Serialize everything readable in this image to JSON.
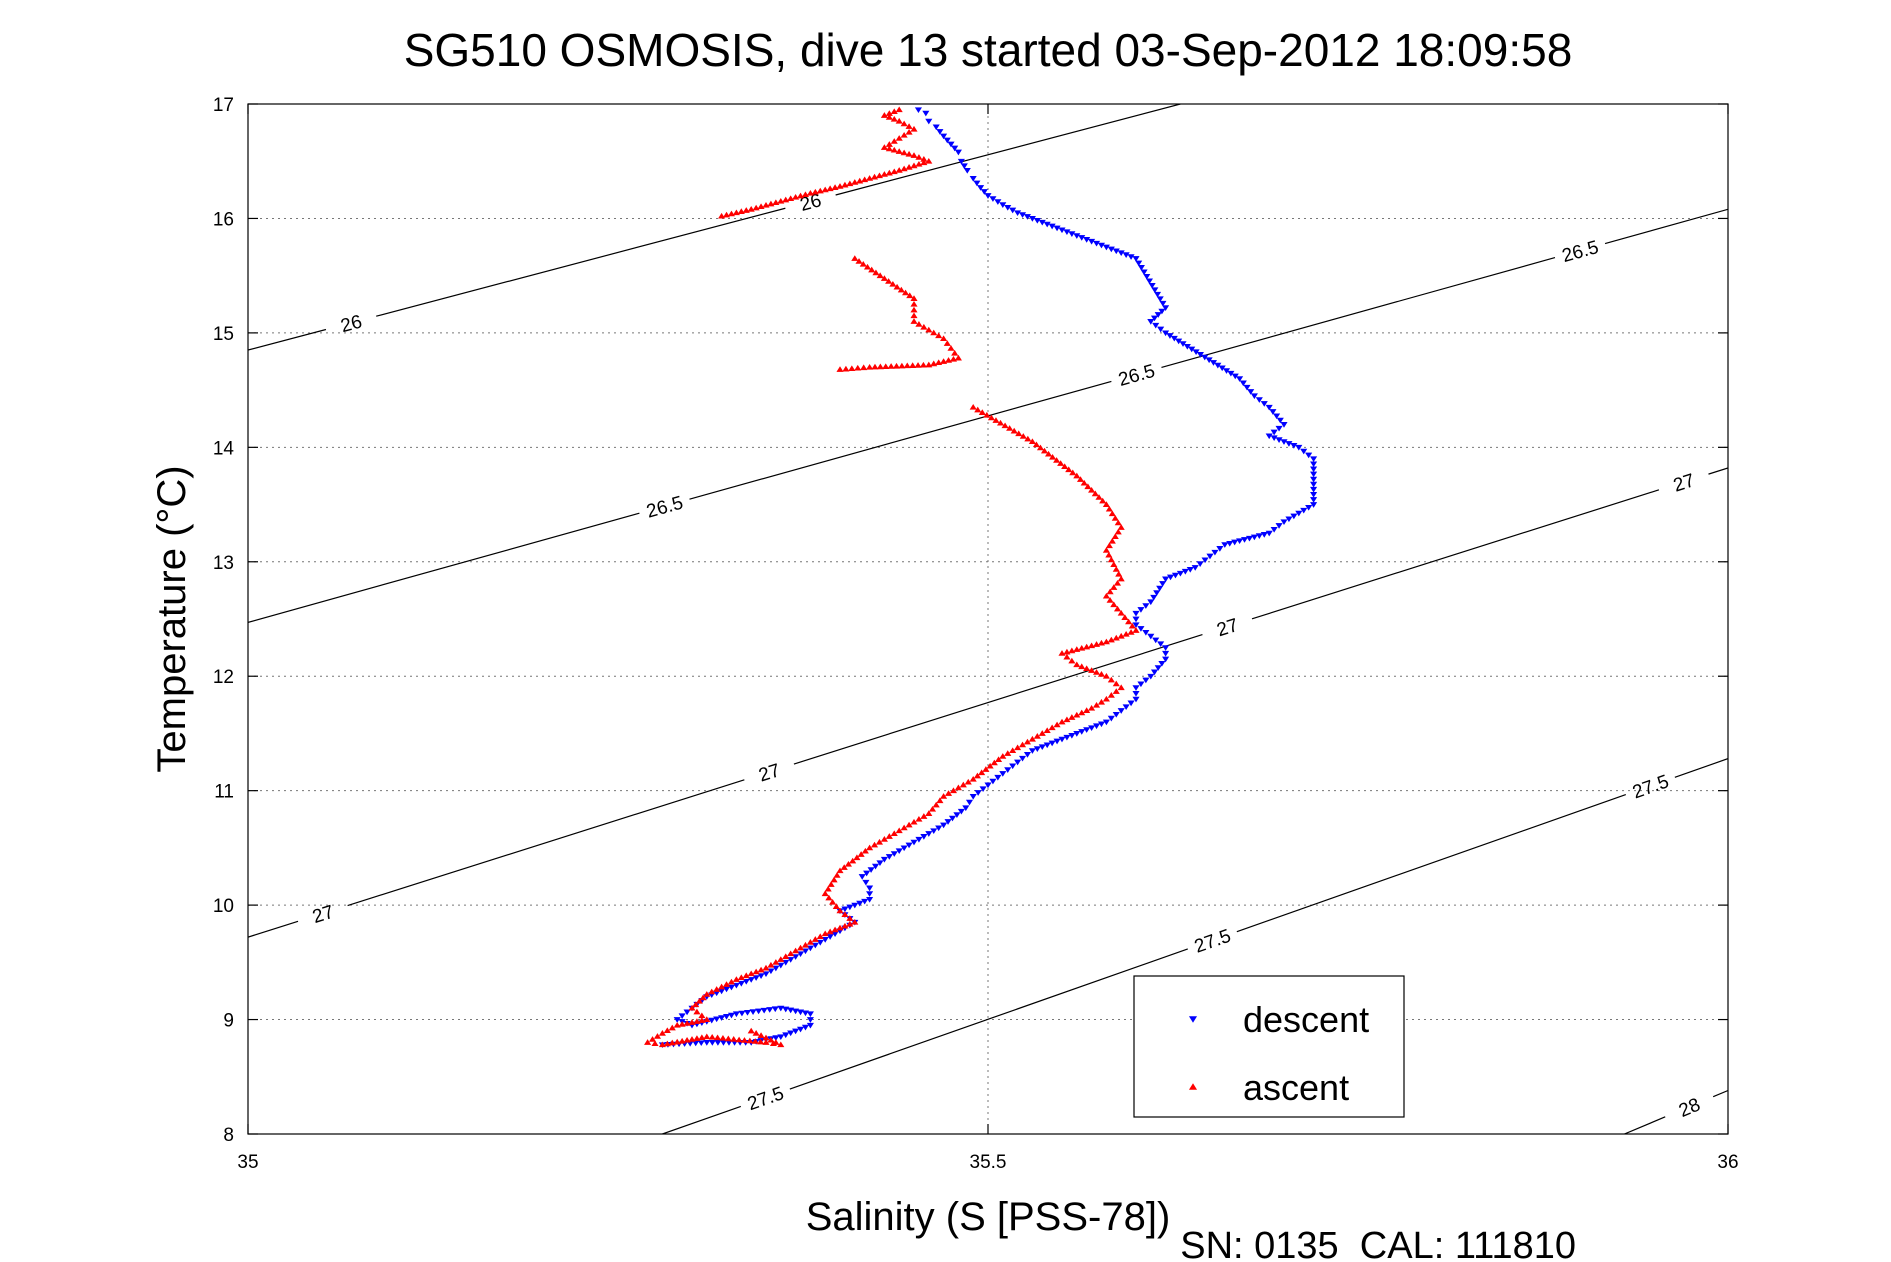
{
  "chart_data": {
    "type": "scatter",
    "title": "SG510 OSMOSIS, dive 13 started 03-Sep-2012 18:09:58",
    "xlabel": "Salinity (S [PSS-78])",
    "ylabel": "Temperature (°C)",
    "xlim": [
      35,
      36
    ],
    "ylim": [
      8,
      17
    ],
    "xticks": [
      35,
      35.5,
      36
    ],
    "xtick_labels": [
      "35",
      "35.5",
      "36"
    ],
    "yticks": [
      8,
      9,
      10,
      11,
      12,
      13,
      14,
      15,
      16,
      17
    ],
    "ytick_labels": [
      "8",
      "9",
      "10",
      "11",
      "12",
      "13",
      "14",
      "15",
      "16",
      "17"
    ],
    "grid": true,
    "legend_position": "bottom-right",
    "footer": "SN: 0135  CAL: 111810",
    "contours": [
      {
        "label": "26",
        "points": [
          [
            35,
            14.85
          ],
          [
            35.63,
            17.0
          ]
        ],
        "labels": [
          {
            "text": "26",
            "x": 35.07,
            "y": 15.07
          },
          {
            "text": "26",
            "x": 35.38,
            "y": 16.15
          }
        ]
      },
      {
        "label": "26.5",
        "points": [
          [
            35,
            12.47
          ],
          [
            36,
            16.08
          ]
        ],
        "labels": [
          {
            "text": "26.5",
            "x": 35.28,
            "y": 13.55
          },
          {
            "text": "26.5",
            "x": 35.6,
            "y": 14.65
          },
          {
            "text": "26.5",
            "x": 35.9,
            "y": 15.72
          }
        ]
      },
      {
        "label": "27",
        "points": [
          [
            35,
            9.72
          ],
          [
            36,
            13.82
          ]
        ],
        "labels": [
          {
            "text": "27",
            "x": 35.05,
            "y": 9.95
          },
          {
            "text": "27",
            "x": 35.35,
            "y": 11.25
          },
          {
            "text": "27",
            "x": 35.66,
            "y": 12.5
          },
          {
            "text": "27",
            "x": 35.97,
            "y": 13.7
          }
        ]
      },
      {
        "label": "27.5",
        "points": [
          [
            35.28,
            8.0
          ],
          [
            36,
            11.28
          ]
        ],
        "labels": [
          {
            "text": "27.5",
            "x": 35.35,
            "y": 8.3
          },
          {
            "text": "27.5",
            "x": 35.65,
            "y": 9.75
          },
          {
            "text": "27.5",
            "x": 35.95,
            "y": 10.95
          }
        ]
      },
      {
        "label": "28",
        "points": [
          [
            35.93,
            8.0
          ],
          [
            36,
            8.38
          ]
        ],
        "labels": [
          {
            "text": "28",
            "x": 35.975,
            "y": 8.2
          }
        ]
      }
    ],
    "series": [
      {
        "name": "descent",
        "color": "#0000ff",
        "marker": "triangle-down",
        "x": [
          35.453,
          35.458,
          35.46,
          35.465,
          35.47,
          35.475,
          35.48,
          35.482,
          35.486,
          35.49,
          35.495,
          35.5,
          35.51,
          35.52,
          35.54,
          35.56,
          35.6,
          35.62,
          35.61,
          35.62,
          35.67,
          35.68,
          35.69,
          35.7,
          35.69,
          35.71,
          35.72,
          35.72,
          35.7,
          35.69,
          35.66,
          35.65,
          35.64,
          35.62,
          35.61,
          35.6,
          35.6,
          35.61,
          35.62,
          35.62,
          35.61,
          35.6,
          35.6,
          35.59,
          35.58,
          35.57,
          35.55,
          35.53,
          35.52,
          35.51,
          35.5,
          35.49,
          35.485,
          35.47,
          35.45,
          35.43,
          35.415,
          35.42,
          35.42,
          35.4,
          35.41,
          35.39,
          35.37,
          35.35,
          35.33,
          35.31,
          35.3,
          35.29,
          35.3,
          35.33,
          35.36,
          35.38,
          35.38,
          35.36,
          35.34,
          35.31,
          35.28
        ],
        "y": [
          16.95,
          16.92,
          16.85,
          16.8,
          16.72,
          16.65,
          16.58,
          16.5,
          16.42,
          16.35,
          16.27,
          16.2,
          16.12,
          16.05,
          15.95,
          15.85,
          15.65,
          15.22,
          15.1,
          15.0,
          14.6,
          14.45,
          14.35,
          14.2,
          14.1,
          14.0,
          13.9,
          13.5,
          13.35,
          13.25,
          13.15,
          13.05,
          12.95,
          12.85,
          12.65,
          12.55,
          12.45,
          12.35,
          12.25,
          12.15,
          12.0,
          11.9,
          11.8,
          11.7,
          11.6,
          11.55,
          11.45,
          11.35,
          11.25,
          11.15,
          11.05,
          10.95,
          10.85,
          10.7,
          10.55,
          10.4,
          10.25,
          10.15,
          10.05,
          9.95,
          9.85,
          9.7,
          9.55,
          9.4,
          9.3,
          9.2,
          9.1,
          9.0,
          8.95,
          9.05,
          9.1,
          9.05,
          8.95,
          8.85,
          8.8,
          8.8,
          8.78
        ]
      },
      {
        "name": "ascent",
        "color": "#ff0000",
        "marker": "triangle-up",
        "x": [
          35.44,
          35.43,
          35.44,
          35.45,
          35.44,
          35.43,
          35.45,
          35.46,
          35.44,
          35.42,
          35.4,
          35.38,
          35.36,
          35.34,
          35.32,
          35.41,
          35.45,
          35.45,
          35.47,
          35.48,
          35.46,
          35.42,
          35.4,
          35.49,
          35.53,
          35.56,
          35.58,
          35.59,
          35.58,
          35.59,
          35.58,
          35.59,
          35.6,
          35.58,
          35.55,
          35.56,
          35.58,
          35.59,
          35.58,
          35.57,
          35.55,
          35.53,
          35.51,
          35.49,
          35.47,
          35.46,
          35.44,
          35.42,
          35.4,
          35.39,
          35.4,
          35.41,
          35.39,
          35.37,
          35.35,
          35.33,
          35.31,
          35.3,
          35.31,
          35.29,
          35.28,
          35.27,
          35.28,
          35.31,
          35.35,
          35.36,
          35.34
        ],
        "y": [
          16.95,
          16.9,
          16.85,
          16.78,
          16.7,
          16.62,
          16.55,
          16.5,
          16.42,
          16.35,
          16.28,
          16.22,
          16.15,
          16.08,
          16.02,
          15.65,
          15.3,
          15.1,
          14.95,
          14.78,
          14.72,
          14.7,
          14.68,
          14.35,
          14.05,
          13.75,
          13.5,
          13.3,
          13.1,
          12.85,
          12.7,
          12.55,
          12.4,
          12.3,
          12.2,
          12.1,
          12.0,
          11.9,
          11.8,
          11.72,
          11.6,
          11.45,
          11.3,
          11.1,
          10.95,
          10.8,
          10.65,
          10.5,
          10.3,
          10.1,
          9.95,
          9.85,
          9.75,
          9.6,
          9.45,
          9.35,
          9.22,
          9.1,
          9.0,
          8.95,
          8.88,
          8.8,
          8.78,
          8.85,
          8.8,
          8.78,
          8.9
        ]
      }
    ]
  }
}
